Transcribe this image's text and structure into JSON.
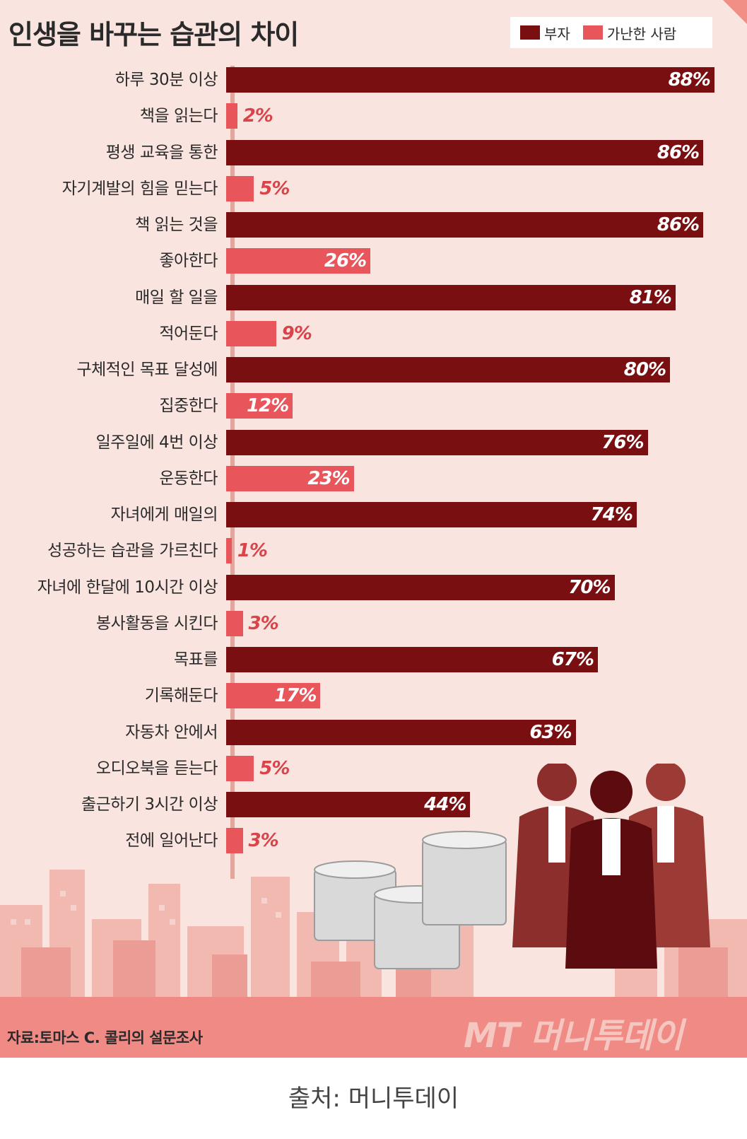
{
  "title": "인생을 바꾸는 습관의 차이",
  "legend": [
    {
      "name": "부자",
      "color": "#7a0f12"
    },
    {
      "name": "가난한 사람",
      "color": "#e8555a"
    }
  ],
  "chart_data": {
    "type": "bar",
    "orientation": "horizontal",
    "title": "인생을 바꾸는 습관의 차이",
    "unit": "%",
    "xlim": [
      0,
      100
    ],
    "legend_position": "top-right",
    "categories": [
      [
        "하루 30분 이상",
        "책을 읽는다"
      ],
      [
        "평생 교육을 통한",
        "자기계발의 힘을 믿는다"
      ],
      [
        "책 읽는 것을",
        "좋아한다"
      ],
      [
        "매일 할 일을",
        "적어둔다"
      ],
      [
        "구체적인 목표 달성에",
        "집중한다"
      ],
      [
        "일주일에 4번 이상",
        "운동한다"
      ],
      [
        "자녀에게 매일의",
        "성공하는 습관을 가르친다"
      ],
      [
        "자녀에 한달에 10시간 이상",
        "봉사활동을 시킨다"
      ],
      [
        "목표를",
        "기록해둔다"
      ],
      [
        "자동차 안에서",
        "오디오북을 듣는다"
      ],
      [
        "출근하기 3시간 이상",
        "전에 일어난다"
      ]
    ],
    "series": [
      {
        "name": "부자",
        "color": "#7a0f12",
        "values": [
          88,
          86,
          86,
          81,
          80,
          76,
          74,
          70,
          67,
          63,
          44
        ]
      },
      {
        "name": "가난한 사람",
        "color": "#e8555a",
        "values": [
          2,
          5,
          26,
          9,
          12,
          23,
          1,
          3,
          17,
          5,
          3
        ]
      }
    ]
  },
  "footer": {
    "source_note": "자료:토마스 C. 콜리의 설문조사",
    "logo_text": "MT 머니투데이"
  },
  "caption": "출처: 머니투데이"
}
